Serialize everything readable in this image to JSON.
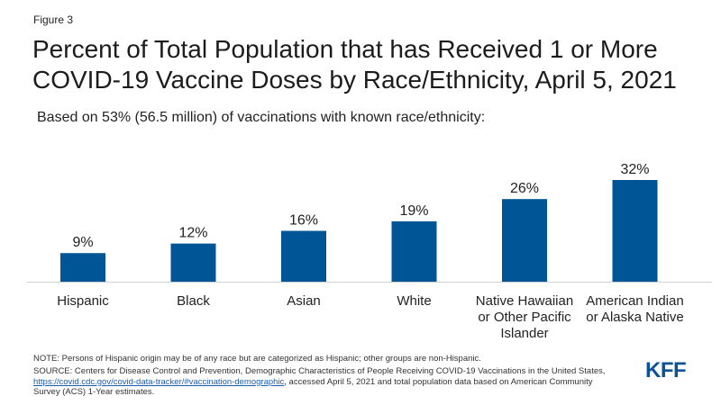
{
  "figure_label": "Figure 3",
  "title": "Percent of Total Population that has Received 1 or More COVID-19 Vaccine Doses by Race/Ethnicity, April 5, 2021",
  "subtitle": "Based on 53% (56.5 million) of vaccinations with known race/ethnicity:",
  "note": "NOTE: Persons of Hispanic origin may be of any race but are categorized as Hispanic; other groups are non-Hispanic.",
  "source": {
    "before_link": "SOURCE: Centers for Disease Control and Prevention, Demographic Characteristics of People Receiving COVID-19 Vaccinations in the United States, ",
    "link_text": "https://covid.cdc.gov/covid-data-tracker/#vaccination-demographic",
    "after_link": ",  accessed April 5, 2021 and total population data based on American Community Survey (ACS) 1-Year estimates."
  },
  "logo": "KFF",
  "colors": {
    "bar": "#005596",
    "text": "#222222",
    "link": "#1a5fb4",
    "logo": "#0b5394"
  },
  "chart_data": {
    "type": "bar",
    "categories": [
      [
        "Hispanic"
      ],
      [
        "Black"
      ],
      [
        "Asian"
      ],
      [
        "White"
      ],
      [
        "Native Hawaiian",
        "or Other Pacific",
        "Islander"
      ],
      [
        "American Indian",
        "or Alaska Native"
      ]
    ],
    "values": [
      9,
      12,
      16,
      19,
      26,
      32
    ],
    "value_labels": [
      "9%",
      "12%",
      "16%",
      "19%",
      "26%",
      "32%"
    ],
    "title": "Percent of Total Population that has Received 1 or More COVID-19 Vaccine Doses by Race/Ethnicity, April 5, 2021",
    "ylim": [
      0,
      32
    ],
    "grid": false,
    "legend": "none"
  }
}
